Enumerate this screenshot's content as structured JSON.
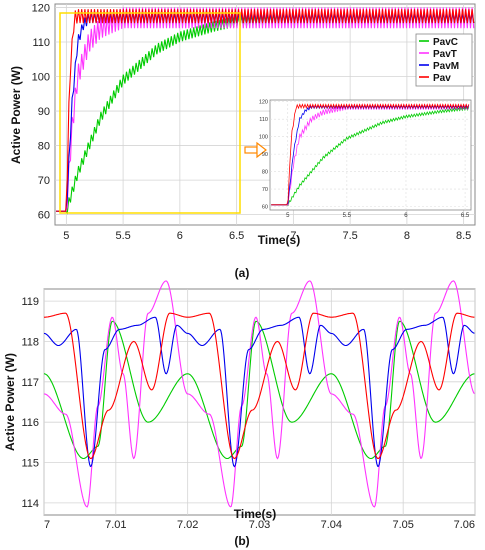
{
  "figure": {
    "caption_a": "(a)",
    "caption_b": "(b)"
  },
  "chart_data": [
    {
      "panel": "a",
      "type": "line",
      "xlabel": "Time(s)",
      "ylabel": "Active Power (W)",
      "xlim": [
        4.9,
        8.6
      ],
      "ylim": [
        57,
        121
      ],
      "xticks": [
        "5",
        "5.5",
        "6",
        "6.5",
        "7",
        "7.5",
        "8",
        "8.5"
      ],
      "yticks": [
        "60",
        "70",
        "80",
        "90",
        "100",
        "110",
        "120"
      ],
      "grid": true,
      "legend": "top-right",
      "colors": {
        "PavC": "#00cc00",
        "PavT": "#ff33ff",
        "PavM": "#0000ee",
        "Pav": "#ff0000",
        "highlight_box": "#ffdd00",
        "arrow": "#ff8800"
      },
      "series": [
        {
          "name": "PavC",
          "x": [
            4.9,
            5.0,
            5.1,
            5.3,
            5.5,
            5.8,
            6.0,
            6.3,
            6.5,
            7.0,
            8.6
          ],
          "values": [
            61,
            61,
            72,
            88,
            99,
            108,
            111.5,
            114.5,
            116,
            117,
            117
          ],
          "ripple": 3
        },
        {
          "name": "PavT",
          "x": [
            4.9,
            5.0,
            5.05,
            5.1,
            5.2,
            5.3,
            5.5,
            8.6
          ],
          "values": [
            61,
            61,
            85,
            100,
            110,
            114,
            117,
            117
          ],
          "ripple": 6
        },
        {
          "name": "PavM",
          "x": [
            4.9,
            5.0,
            5.05,
            5.1,
            5.15,
            5.2,
            8.6
          ],
          "values": [
            61,
            61,
            92,
            110,
            115,
            117,
            117
          ],
          "ripple": 3
        },
        {
          "name": "Pav",
          "x": [
            4.9,
            5.0,
            5.03,
            5.07,
            5.1,
            8.6
          ],
          "values": [
            61,
            61,
            100,
            117,
            117.5,
            117.5
          ],
          "ripple": 4
        }
      ],
      "inset": {
        "xlim": [
          4.85,
          6.55
        ],
        "ylim": [
          58,
          121
        ],
        "xticks": [
          "5",
          "5.5",
          "6",
          "6.5"
        ],
        "yticks": [
          "60",
          "70",
          "80",
          "90",
          "100",
          "110",
          "120"
        ]
      }
    },
    {
      "panel": "b",
      "type": "line",
      "xlabel": "Time(s)",
      "ylabel": "Active Power (W)",
      "xlim": [
        7.0,
        7.06
      ],
      "ylim": [
        113.7,
        119.3
      ],
      "xticks": [
        "7",
        "7.01",
        "7.02",
        "7.03",
        "7.04",
        "7.05",
        "7.06"
      ],
      "yticks": [
        "114",
        "115",
        "116",
        "117",
        "118",
        "119"
      ],
      "grid": true,
      "period": 0.02,
      "colors": {
        "PavC": "#00cc00",
        "PavT": "#ff33ff",
        "PavM": "#0000ee",
        "Pav": "#ff0000"
      },
      "series": [
        {
          "name": "PavC",
          "x": [
            7.0,
            7.0055,
            7.0075,
            7.0095,
            7.0145,
            7.02
          ],
          "values": [
            117.2,
            115.1,
            115.4,
            118.5,
            116.0,
            117.2
          ]
        },
        {
          "name": "PavT",
          "x": [
            7.0,
            7.003,
            7.006,
            7.0075,
            7.0095,
            7.011,
            7.0125,
            7.0145,
            7.017,
            7.02
          ],
          "values": [
            116.7,
            116.2,
            113.9,
            116.4,
            118.6,
            117.2,
            115.1,
            118.7,
            119.5,
            116.7
          ]
        },
        {
          "name": "PavM",
          "x": [
            7.0,
            7.002,
            7.0045,
            7.0065,
            7.0085,
            7.0105,
            7.013,
            7.0155,
            7.017,
            7.0185,
            7.02
          ],
          "values": [
            118.2,
            117.9,
            118.3,
            114.9,
            117.8,
            118.3,
            118.4,
            118.6,
            117.2,
            118.4,
            118.2
          ]
        },
        {
          "name": "Pav",
          "x": [
            7.0,
            7.003,
            7.0065,
            7.009,
            7.0125,
            7.015,
            7.0175,
            7.02
          ],
          "values": [
            118.6,
            118.7,
            115.1,
            116.3,
            118.0,
            116.8,
            118.7,
            118.6
          ]
        }
      ]
    }
  ]
}
